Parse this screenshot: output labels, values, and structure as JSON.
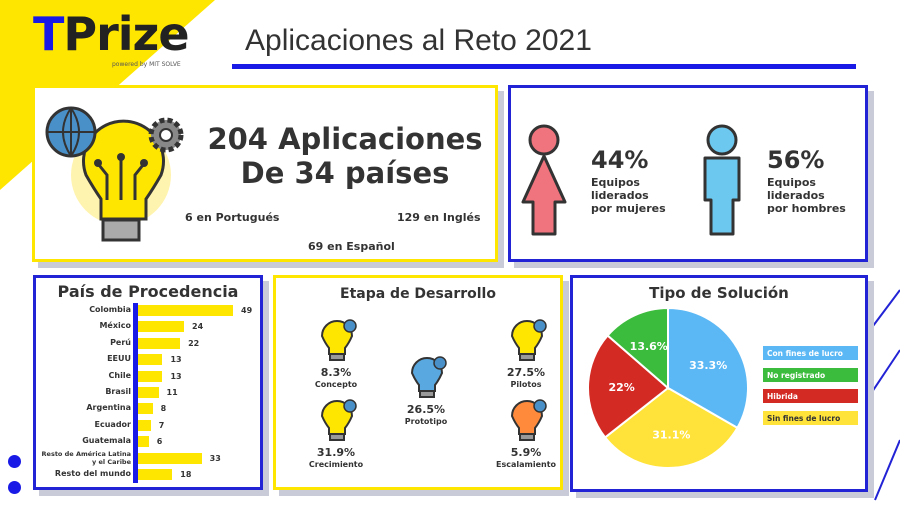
{
  "header": {
    "logo_prefix": "T",
    "logo_rest": "Prize",
    "powered_by": "powered by MIT SOLVE",
    "title": "Aplicaciones al Reto 2021"
  },
  "summary": {
    "total_line": "204 Aplicaciones",
    "countries_line": "De 34 países",
    "portuguese": "6 en Portugués",
    "english": "129 en Inglés",
    "spanish": "69 en Español"
  },
  "gender": {
    "women_pct": "44%",
    "women_label": [
      "Equipos",
      "liderados",
      "por mujeres"
    ],
    "men_pct": "56%",
    "men_label": [
      "Equipos",
      "liderados",
      "por hombres"
    ],
    "colors": {
      "women": "#f0747e",
      "men": "#6cc8ee"
    }
  },
  "stages": {
    "title": "Etapa de Desarrollo",
    "items": [
      {
        "pct": "8.3%",
        "label": "Concepto",
        "icon": "lightbulb-globe-icon"
      },
      {
        "pct": "27.5%",
        "label": "Pilotos",
        "icon": "lightbulb-gear-icon"
      },
      {
        "pct": "26.5%",
        "label": "Prototipo",
        "icon": "blueprint-pencil-icon"
      },
      {
        "pct": "31.9%",
        "label": "Crecimiento",
        "icon": "lightbulb-plant-icon"
      },
      {
        "pct": "5.9%",
        "label": "Escalamiento",
        "icon": "rocket-icon"
      }
    ]
  },
  "chart_data": [
    {
      "type": "bar",
      "orientation": "horizontal",
      "title": "País de Procedencia",
      "categories": [
        "Colombia",
        "México",
        "Perú",
        "EEUU",
        "Chile",
        "Brasil",
        "Argentina",
        "Ecuador",
        "Guatemala",
        "Resto de América Latina y el Caribe",
        "Resto del mundo"
      ],
      "values": [
        49,
        24,
        22,
        13,
        13,
        11,
        8,
        7,
        6,
        33,
        18
      ],
      "bar_color": "#ffe600",
      "axis_color": "#1a1ae6"
    },
    {
      "type": "pie",
      "title": "Tipo de Solución",
      "legend_position": "right",
      "slices": [
        {
          "name": "Con fines de lucro",
          "value": 33.3,
          "label": "33.3%",
          "color": "#5cb8f5"
        },
        {
          "name": "Sin fines de lucro",
          "value": 31.1,
          "label": "31.1%",
          "color": "#ffe23a"
        },
        {
          "name": "Hibrida",
          "value": 22,
          "label": "22%",
          "color": "#d42a24"
        },
        {
          "name": "No registrado",
          "value": 13.6,
          "label": "13.6%",
          "color": "#3cbc3c"
        }
      ],
      "legend_order": [
        "Con fines de lucro",
        "No registrado",
        "Hibrida",
        "Sin fines de lucro"
      ]
    }
  ]
}
